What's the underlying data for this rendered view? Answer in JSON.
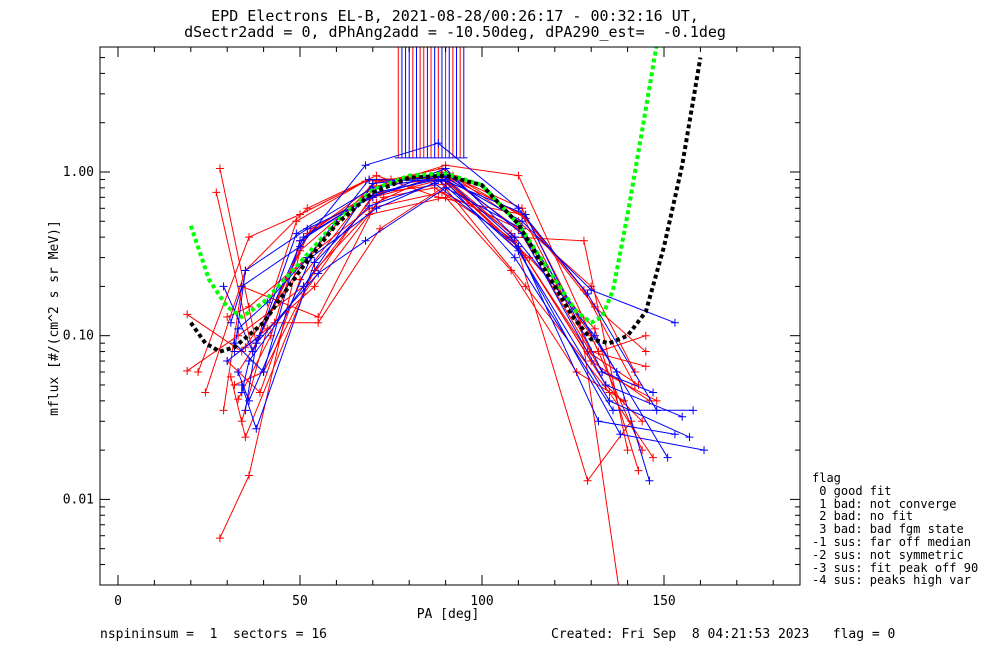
{
  "title": {
    "line1": "EPD Electrons EL-B, 2021-08-28/00:26:17 - 00:32:16 UT,",
    "line2": "dSectr2add = 0, dPhAng2add = -10.50deg, dPA290_est=  -0.1deg"
  },
  "footer": {
    "left": "nspininsum =  1  sectors = 16",
    "right": "Created: Fri Sep  8 04:21:53 2023   flag = 0"
  },
  "legend": {
    "title": "flag",
    "items": [
      " 0 good fit",
      " 1 bad: not converge",
      " 2 bad: no fit",
      " 3 bad: bad fgm state",
      "-1 sus: far off median",
      "-2 sus: not symmetric",
      "-3 sus: fit peak off 90",
      "-4 sus: peaks high var"
    ]
  },
  "colors": {
    "red": "#ff0000",
    "blue": "#0000ff",
    "green": "#00ff00",
    "black": "#000000"
  },
  "chart_data": {
    "type": "line",
    "title": "EPD Electrons EL-B, 2021-08-28/00:26:17 - 00:32:16 UT, dSectr2add = 0, dPhAng2add = -10.50deg, dPA290_est=  -0.1deg",
    "xlabel": "PA [deg]",
    "ylabel": "mflux [#/(cm^2 s sr MeV)]",
    "xlim": [
      -10,
      185
    ],
    "ylim": [
      0.003,
      5.8
    ],
    "yscale": "log",
    "x_ticks": [
      0,
      50,
      100,
      150
    ],
    "y_ticks": [
      0.01,
      0.1,
      1.0
    ],
    "y_tick_labels": [
      "0.01",
      "0.10",
      "1.00"
    ],
    "grid": false,
    "legend_position": "bottom-right outside",
    "fits": [
      {
        "color": "green",
        "x": [
          20,
          25,
          30,
          34,
          40,
          50,
          60,
          70,
          80,
          90,
          100,
          110,
          120,
          126,
          130,
          133,
          136,
          140,
          144,
          148
        ],
        "y": [
          0.47,
          0.22,
          0.15,
          0.13,
          0.16,
          0.28,
          0.5,
          0.78,
          0.95,
          0.98,
          0.83,
          0.48,
          0.22,
          0.14,
          0.12,
          0.13,
          0.19,
          0.55,
          1.8,
          6.0
        ]
      },
      {
        "color": "black",
        "x": [
          20,
          24,
          28,
          32,
          40,
          50,
          60,
          70,
          80,
          90,
          100,
          110,
          120,
          125,
          130,
          135,
          140,
          145,
          150,
          155,
          160
        ],
        "y": [
          0.12,
          0.09,
          0.08,
          0.085,
          0.12,
          0.25,
          0.48,
          0.75,
          0.92,
          0.95,
          0.83,
          0.48,
          0.2,
          0.13,
          0.095,
          0.09,
          0.1,
          0.14,
          0.35,
          1.1,
          5.0
        ]
      }
    ],
    "series": [
      {
        "color": "red",
        "x": [
          19,
          34,
          52,
          70,
          89,
          110,
          130,
          142
        ],
        "y": [
          0.135,
          0.08,
          0.3,
          0.85,
          1.05,
          0.5,
          0.2,
          0.06
        ]
      },
      {
        "color": "red",
        "x": [
          19,
          33,
          51,
          70,
          89,
          110,
          129,
          143
        ],
        "y": [
          0.061,
          0.1,
          0.2,
          0.7,
          0.9,
          0.35,
          0.08,
          0.05
        ]
      },
      {
        "color": "red",
        "x": [
          22,
          36,
          50,
          69,
          90,
          109,
          128,
          140
        ],
        "y": [
          0.06,
          0.4,
          0.55,
          0.9,
          0.92,
          0.4,
          0.38,
          0.02
        ]
      },
      {
        "color": "red",
        "x": [
          24,
          35,
          52,
          71,
          88,
          111,
          131,
          145
        ],
        "y": [
          0.045,
          0.25,
          0.6,
          0.95,
          0.7,
          0.55,
          0.15,
          0.08
        ]
      },
      {
        "color": "red",
        "x": [
          28,
          36,
          50,
          70,
          90,
          110,
          132,
          145
        ],
        "y": [
          0.0058,
          0.014,
          0.33,
          0.8,
          1.1,
          0.95,
          0.08,
          0.1
        ]
      },
      {
        "color": "red",
        "x": [
          27,
          37,
          53,
          72,
          91,
          112,
          130,
          146
        ],
        "y": [
          0.75,
          0.08,
          0.45,
          0.75,
          0.85,
          0.3,
          0.07,
          0.04
        ]
      },
      {
        "color": "red",
        "x": [
          28,
          38,
          49,
          68,
          88,
          108,
          134,
          144
        ],
        "y": [
          1.05,
          0.09,
          0.5,
          0.88,
          0.95,
          0.42,
          0.05,
          0.03
        ]
      },
      {
        "color": "red",
        "x": [
          29,
          34,
          55,
          71,
          89,
          111,
          127,
          138
        ],
        "y": [
          0.035,
          0.2,
          0.13,
          0.65,
          1.0,
          0.6,
          0.12,
          0.0025
        ]
      },
      {
        "color": "red",
        "x": [
          31,
          35,
          51,
          70,
          90,
          110,
          133,
          148
        ],
        "y": [
          0.056,
          0.024,
          0.18,
          0.72,
          0.95,
          0.45,
          0.06,
          0.04
        ]
      },
      {
        "color": "red",
        "x": [
          32,
          40,
          54,
          73,
          87,
          109,
          129,
          141
        ],
        "y": [
          0.05,
          0.06,
          0.25,
          0.7,
          0.8,
          0.38,
          0.013,
          0.03
        ]
      },
      {
        "color": "red",
        "x": [
          33,
          42,
          50,
          70,
          88,
          112,
          135,
          147
        ],
        "y": [
          0.041,
          0.1,
          0.38,
          0.82,
          0.9,
          0.2,
          0.045,
          0.018
        ]
      },
      {
        "color": "red",
        "x": [
          30,
          36,
          52,
          69,
          89,
          110,
          130,
          144
        ],
        "y": [
          0.13,
          0.15,
          0.3,
          0.6,
          0.75,
          0.45,
          0.1,
          0.02
        ]
      },
      {
        "color": "red",
        "x": [
          34,
          41,
          54,
          69,
          90,
          108,
          126,
          139
        ],
        "y": [
          0.03,
          0.11,
          0.2,
          0.55,
          0.7,
          0.25,
          0.06,
          0.04
        ]
      },
      {
        "color": "red",
        "x": [
          35,
          43,
          55,
          72,
          91,
          113,
          131,
          143
        ],
        "y": [
          0.085,
          0.12,
          0.12,
          0.45,
          0.85,
          0.3,
          0.11,
          0.015
        ]
      },
      {
        "color": "red",
        "x": [
          33,
          38,
          52,
          75,
          92,
          112,
          128,
          142
        ],
        "y": [
          0.06,
          0.09,
          0.42,
          0.9,
          0.95,
          0.52,
          0.19,
          0.05
        ]
      },
      {
        "color": "red",
        "x": [
          30,
          39,
          50,
          71,
          89,
          111,
          130,
          145
        ],
        "y": [
          0.07,
          0.045,
          0.22,
          0.88,
          0.97,
          0.55,
          0.08,
          0.065
        ]
      },
      {
        "color": "blue",
        "x": [
          29,
          37,
          51,
          69,
          89,
          111,
          130,
          153
        ],
        "y": [
          0.2,
          0.08,
          0.4,
          0.7,
          0.95,
          0.5,
          0.19,
          0.12
        ]
      },
      {
        "color": "blue",
        "x": [
          31,
          34,
          50,
          68,
          88,
          110,
          129,
          148
        ],
        "y": [
          0.12,
          0.2,
          0.35,
          1.1,
          1.5,
          0.6,
          0.18,
          0.035
        ]
      },
      {
        "color": "blue",
        "x": [
          32,
          35,
          52,
          70,
          90,
          109,
          131,
          151
        ],
        "y": [
          0.08,
          0.25,
          0.45,
          0.7,
          1.05,
          0.4,
          0.1,
          0.018
        ]
      },
      {
        "color": "blue",
        "x": [
          33,
          36,
          53,
          71,
          89,
          112,
          133,
          147
        ],
        "y": [
          0.06,
          0.04,
          0.3,
          0.6,
          0.9,
          0.55,
          0.06,
          0.045
        ]
      },
      {
        "color": "blue",
        "x": [
          34,
          38,
          54,
          69,
          87,
          110,
          132,
          153
        ],
        "y": [
          0.05,
          0.027,
          0.28,
          0.62,
          0.85,
          0.35,
          0.03,
          0.025
        ]
      },
      {
        "color": "blue",
        "x": [
          30,
          39,
          49,
          70,
          91,
          111,
          134,
          155
        ],
        "y": [
          0.07,
          0.1,
          0.42,
          0.8,
          0.95,
          0.42,
          0.05,
          0.032
        ]
      },
      {
        "color": "blue",
        "x": [
          32,
          40,
          50,
          71,
          88,
          110,
          135,
          157
        ],
        "y": [
          0.09,
          0.06,
          0.38,
          0.75,
          0.9,
          0.33,
          0.04,
          0.024
        ]
      },
      {
        "color": "blue",
        "x": [
          33,
          41,
          52,
          69,
          90,
          109,
          136,
          158
        ],
        "y": [
          0.11,
          0.16,
          0.3,
          0.9,
          0.88,
          0.3,
          0.035,
          0.035
        ]
      },
      {
        "color": "blue",
        "x": [
          34,
          36,
          51,
          70,
          89,
          108,
          138,
          161
        ],
        "y": [
          0.045,
          0.07,
          0.2,
          0.85,
          0.95,
          0.4,
          0.025,
          0.02
        ]
      },
      {
        "color": "blue",
        "x": [
          35,
          38,
          55,
          68,
          90,
          111,
          137,
          146
        ],
        "y": [
          0.035,
          0.09,
          0.24,
          0.38,
          0.8,
          0.45,
          0.06,
          0.013
        ]
      }
    ],
    "spikes": [
      {
        "color": "blue",
        "x": [
          78,
          79,
          80,
          82,
          85,
          87,
          89,
          91,
          93,
          95
        ]
      },
      {
        "color": "red",
        "x": [
          77,
          81,
          83,
          84,
          86,
          88,
          90,
          92,
          94
        ]
      }
    ]
  }
}
